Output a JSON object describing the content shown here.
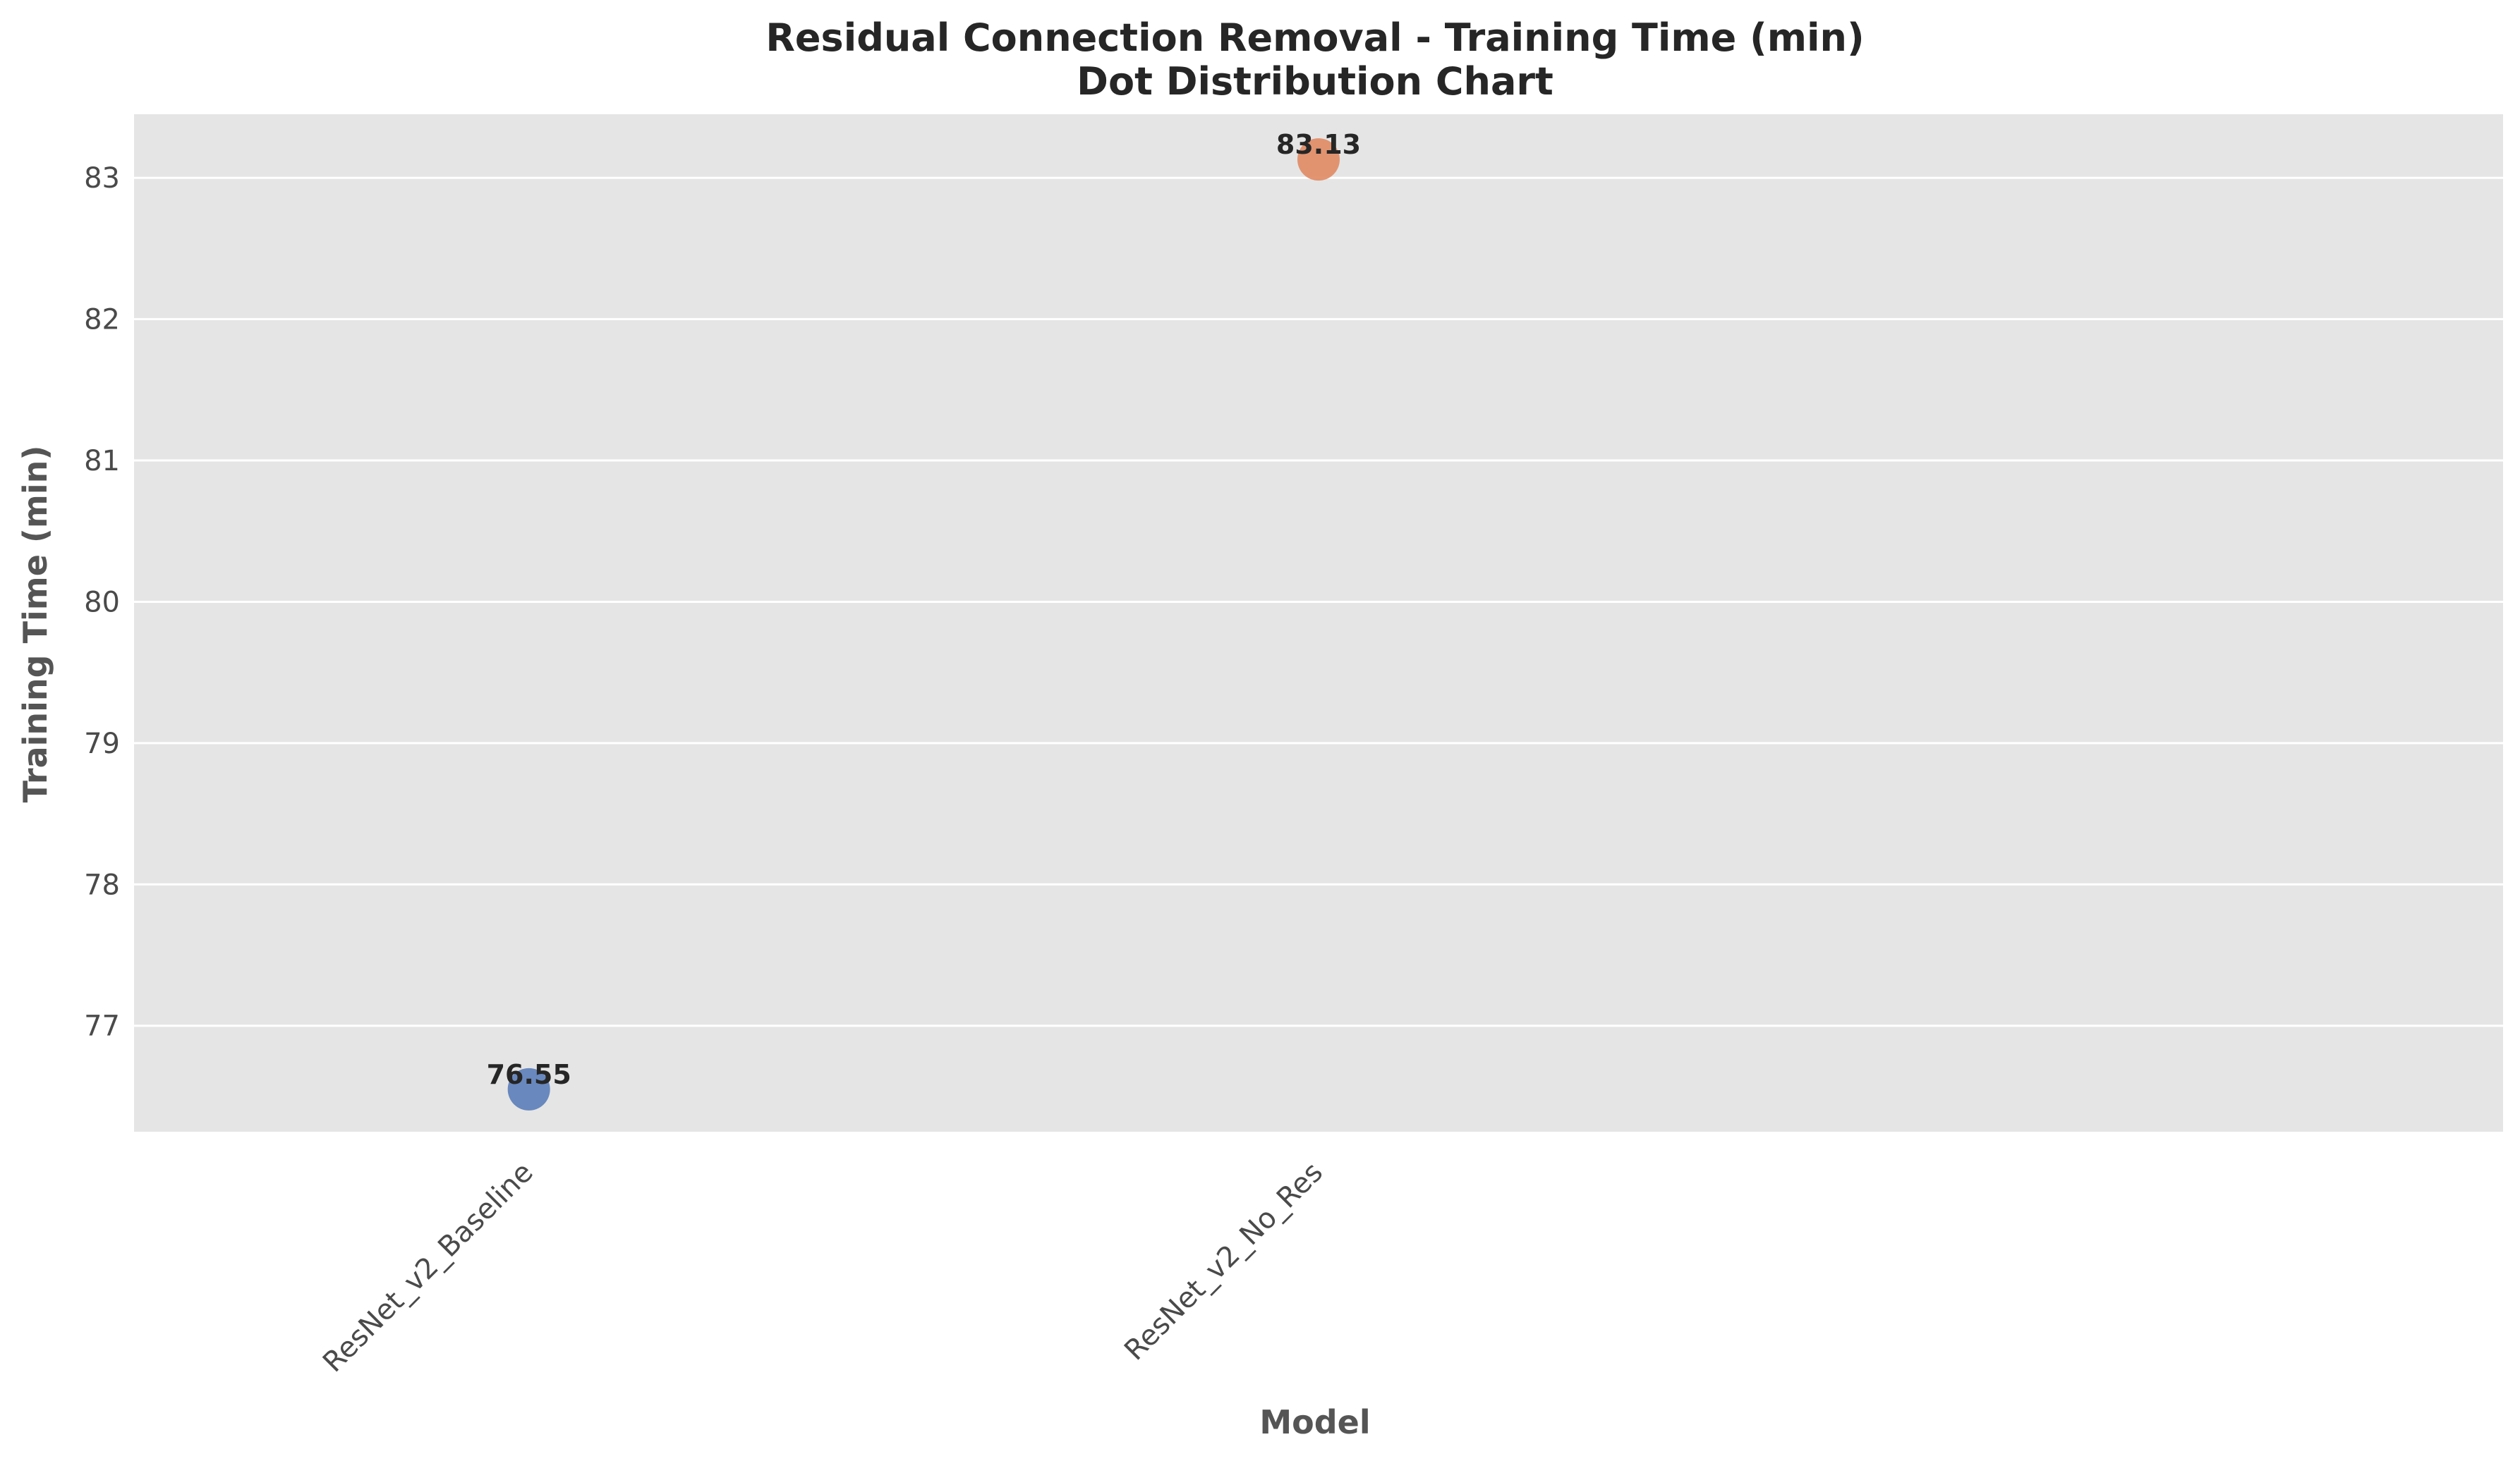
{
  "chart_data": {
    "type": "scatter",
    "title": "Residual Connection Removal - Training Time (min)",
    "subtitle": "Dot Distribution Chart",
    "xlabel": "Model",
    "ylabel": "Training Time (min)",
    "categories": [
      "ResNet_v2_Baseline",
      "ResNet_v2_No_Res"
    ],
    "values": [
      76.55,
      83.13
    ],
    "data_labels": [
      "76.55",
      "83.13"
    ],
    "colors": [
      "#5a7db9",
      "#e08a63"
    ],
    "ylim": [
      76.25,
      83.45
    ],
    "yticks": [
      77,
      78,
      79,
      80,
      81,
      82,
      83
    ],
    "ytick_labels": [
      "77",
      "78",
      "79",
      "80",
      "81",
      "82",
      "83"
    ],
    "grid": true,
    "x_tick_rotation": "45 degrees",
    "legend": "none",
    "background": "#e5e5e5",
    "grid_color": "#ffffff"
  }
}
